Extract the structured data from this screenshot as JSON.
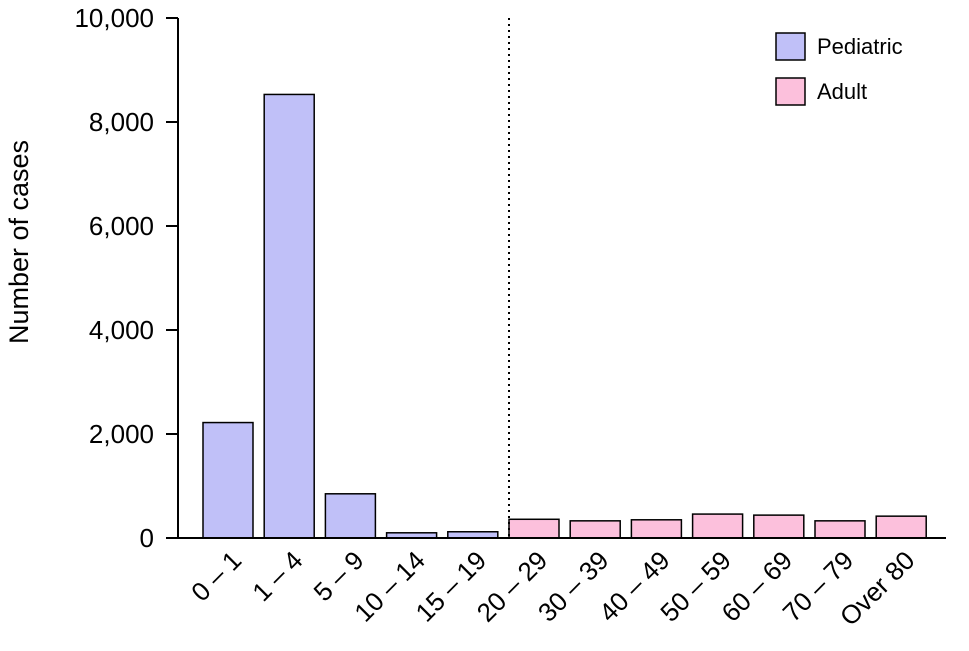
{
  "chart_data": {
    "type": "bar",
    "title": "",
    "xlabel": "",
    "ylabel": "Number of cases",
    "ylim": [
      0,
      10000
    ],
    "yticks": [
      "0",
      "2,000",
      "4,000",
      "6,000",
      "8,000",
      "10,000"
    ],
    "categories": [
      "0 – 1",
      "1 – 4",
      "5 – 9",
      "10 – 14",
      "15 – 19",
      "20 – 29",
      "30 – 39",
      "40 – 49",
      "50 – 59",
      "60 – 69",
      "70 – 79",
      "Over 80"
    ],
    "series": [
      {
        "name": "Pediatric",
        "color": "#c0c0f8",
        "values": [
          2220,
          8530,
          850,
          100,
          120,
          null,
          null,
          null,
          null,
          null,
          null,
          null
        ]
      },
      {
        "name": "Adult",
        "color": "#fcc0dc",
        "values": [
          null,
          null,
          null,
          null,
          null,
          360,
          330,
          350,
          460,
          440,
          330,
          420
        ]
      }
    ],
    "divider": "dotted vertical line between 15 – 19 and 20 – 29",
    "legend_position": "top-right",
    "grid": false
  }
}
